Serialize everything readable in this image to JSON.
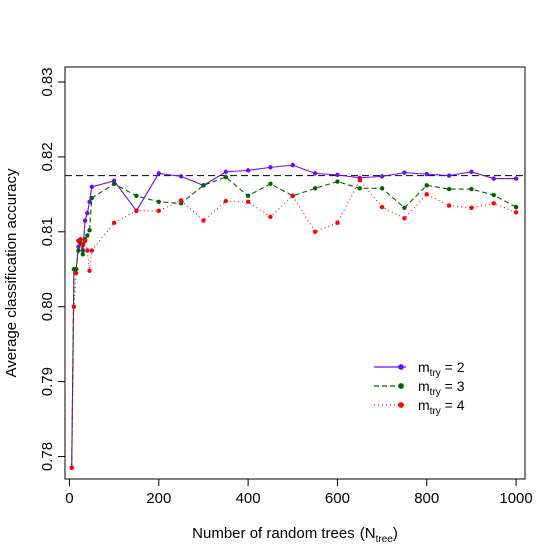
{
  "chart_data": {
    "type": "line",
    "title": "",
    "xlabel": "Number of random trees",
    "xlabel_paren_main": "N",
    "xlabel_paren_sub": "tree",
    "ylabel": "Average classification accuracy",
    "xlim": [
      -10,
      1020
    ],
    "ylim": [
      0.777,
      0.832
    ],
    "x_ticks": [
      0,
      200,
      400,
      600,
      800,
      1000
    ],
    "y_ticks": [
      0.78,
      0.79,
      0.8,
      0.81,
      0.82,
      0.83
    ],
    "y_tick_labels": [
      "0.78",
      "0.79",
      "0.80",
      "0.81",
      "0.82",
      "0.83"
    ],
    "reference_line": {
      "y": 0.8175,
      "style": "dashed",
      "color": "#000000"
    },
    "grid": false,
    "legend_position": "lower-right",
    "series": [
      {
        "name_main": "m",
        "name_sub": "try",
        "name_value": " = 2",
        "color": "#6a0dff",
        "line_style": "solid",
        "marker": "circle",
        "points": [
          [
            5,
            0.7785
          ],
          [
            10,
            0.805
          ],
          [
            15,
            0.805
          ],
          [
            20,
            0.808
          ],
          [
            25,
            0.809
          ],
          [
            30,
            0.8075
          ],
          [
            35,
            0.8115
          ],
          [
            40,
            0.8125
          ],
          [
            45,
            0.814
          ],
          [
            50,
            0.816
          ],
          [
            100,
            0.8168
          ],
          [
            150,
            0.8128
          ],
          [
            200,
            0.8178
          ],
          [
            250,
            0.8174
          ],
          [
            300,
            0.8162
          ],
          [
            350,
            0.818
          ],
          [
            400,
            0.8182
          ],
          [
            450,
            0.8186
          ],
          [
            500,
            0.8189
          ],
          [
            550,
            0.8178
          ],
          [
            600,
            0.8176
          ],
          [
            650,
            0.8172
          ],
          [
            700,
            0.8174
          ],
          [
            750,
            0.8179
          ],
          [
            800,
            0.8177
          ],
          [
            850,
            0.8175
          ],
          [
            900,
            0.818
          ],
          [
            950,
            0.8171
          ],
          [
            1000,
            0.8171
          ]
        ]
      },
      {
        "name_main": "m",
        "name_sub": "try",
        "name_value": " = 3",
        "color": "#006400",
        "line_style": "dashed",
        "marker": "circle",
        "points": [
          [
            5,
            0.7785
          ],
          [
            10,
            0.805
          ],
          [
            15,
            0.805
          ],
          [
            20,
            0.8075
          ],
          [
            25,
            0.8085
          ],
          [
            30,
            0.807
          ],
          [
            35,
            0.809
          ],
          [
            40,
            0.8095
          ],
          [
            45,
            0.8102
          ],
          [
            50,
            0.8145
          ],
          [
            100,
            0.8164
          ],
          [
            150,
            0.8148
          ],
          [
            200,
            0.814
          ],
          [
            250,
            0.8138
          ],
          [
            300,
            0.8162
          ],
          [
            350,
            0.8173
          ],
          [
            400,
            0.8148
          ],
          [
            450,
            0.8164
          ],
          [
            500,
            0.8148
          ],
          [
            550,
            0.8158
          ],
          [
            600,
            0.8167
          ],
          [
            650,
            0.8158
          ],
          [
            700,
            0.8158
          ],
          [
            750,
            0.8132
          ],
          [
            800,
            0.8162
          ],
          [
            850,
            0.8157
          ],
          [
            900,
            0.8157
          ],
          [
            950,
            0.8149
          ],
          [
            1000,
            0.8133
          ]
        ]
      },
      {
        "name_main": "m",
        "name_sub": "try",
        "name_value": " = 4",
        "color": "#ff0000",
        "line_style": "dotted",
        "marker": "circle",
        "points": [
          [
            5,
            0.7785
          ],
          [
            10,
            0.8
          ],
          [
            15,
            0.8045
          ],
          [
            20,
            0.8088
          ],
          [
            25,
            0.809
          ],
          [
            30,
            0.8082
          ],
          [
            35,
            0.8088
          ],
          [
            40,
            0.8075
          ],
          [
            45,
            0.8048
          ],
          [
            50,
            0.8075
          ],
          [
            100,
            0.8112
          ],
          [
            150,
            0.8128
          ],
          [
            200,
            0.8128
          ],
          [
            250,
            0.8142
          ],
          [
            300,
            0.8115
          ],
          [
            350,
            0.8141
          ],
          [
            400,
            0.814
          ],
          [
            450,
            0.812
          ],
          [
            500,
            0.8148
          ],
          [
            550,
            0.81
          ],
          [
            600,
            0.8112
          ],
          [
            650,
            0.8169
          ],
          [
            700,
            0.8133
          ],
          [
            750,
            0.8118
          ],
          [
            800,
            0.815
          ],
          [
            850,
            0.8135
          ],
          [
            900,
            0.8132
          ],
          [
            950,
            0.8138
          ],
          [
            1000,
            0.8126
          ]
        ]
      }
    ]
  }
}
